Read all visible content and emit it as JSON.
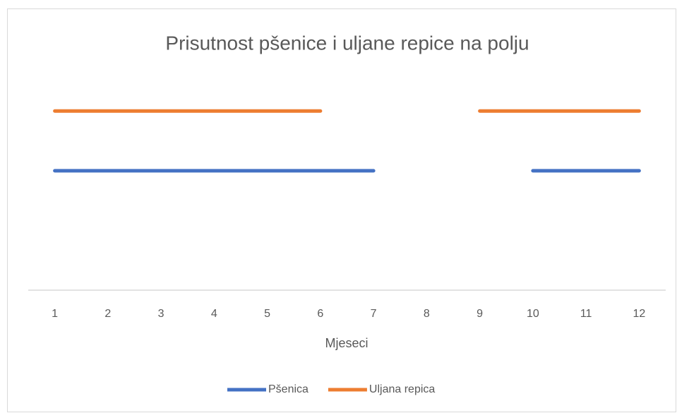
{
  "chart_data": {
    "type": "line",
    "title": "Prisutnost pšenice i uljane repice na polju",
    "x_label": "Mjeseci",
    "categories": [
      "1",
      "2",
      "3",
      "4",
      "5",
      "6",
      "7",
      "8",
      "9",
      "10",
      "11",
      "12"
    ],
    "series": [
      {
        "name": "Pšenica",
        "color": "#4472c4",
        "values": [
          2,
          2,
          2,
          2,
          2,
          2,
          2,
          null,
          null,
          2,
          2,
          2
        ]
      },
      {
        "name": "Uljana repica",
        "color": "#ed7d31",
        "values": [
          3,
          3,
          3,
          3,
          3,
          3,
          null,
          null,
          3,
          3,
          3,
          3
        ]
      }
    ],
    "ylim": [
      0,
      3.5
    ],
    "grid": false,
    "legend": "bottom"
  }
}
